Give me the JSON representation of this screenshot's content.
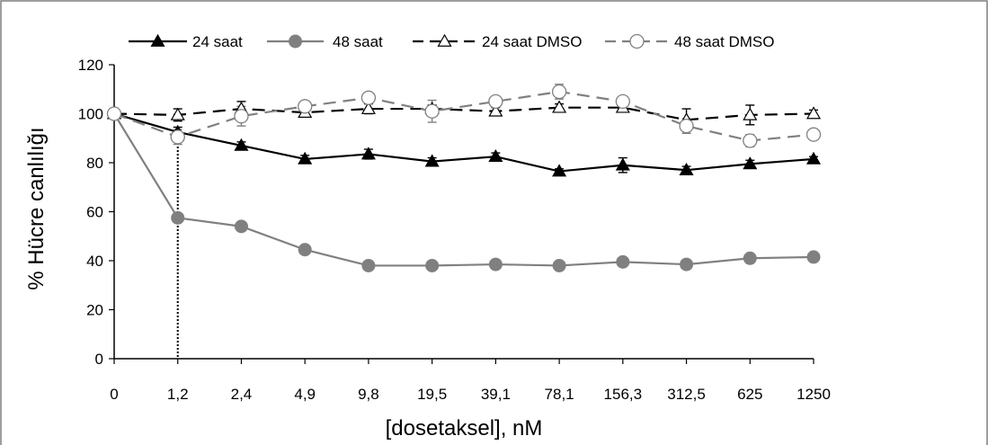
{
  "chart_data": {
    "type": "line",
    "xlabel": "[dosetaksel], nM",
    "ylabel": "% Hücre canlılığı",
    "categories": [
      "0",
      "1,2",
      "2,4",
      "4,9",
      "9,8",
      "19,5",
      "39,1",
      "78,1",
      "156,3",
      "312,5",
      "625",
      "1250"
    ],
    "ylim": [
      0,
      120
    ],
    "yticks": [
      0,
      20,
      40,
      60,
      80,
      100,
      120
    ],
    "grid": false,
    "legend_position": "top",
    "reference_line": {
      "category": "1,2",
      "style": "dotted"
    },
    "series": [
      {
        "name": "24 saat",
        "marker": "triangle-filled",
        "line_style": "solid",
        "color": "#000000",
        "values": [
          100,
          92.5,
          87,
          81.5,
          83.5,
          80.5,
          82.5,
          76.5,
          79,
          77,
          79.5,
          81.5
        ],
        "errors": [
          0,
          2,
          1.5,
          1.5,
          2,
          1.5,
          1.5,
          1,
          3,
          1.5,
          1.5,
          1
        ]
      },
      {
        "name": "48 saat",
        "marker": "circle-filled",
        "line_style": "solid",
        "color": "#808080",
        "values": [
          100,
          57.5,
          54,
          44.5,
          38,
          38,
          38.5,
          38,
          39.5,
          38.5,
          41,
          41.5
        ],
        "errors": [
          0,
          1,
          0.5,
          1,
          0.5,
          0.5,
          0.5,
          0.5,
          0.5,
          0.5,
          0.5,
          0.5
        ]
      },
      {
        "name": "24 saat DMSO",
        "marker": "triangle-open",
        "line_style": "dashed",
        "color": "#000000",
        "values": [
          100,
          99.5,
          102,
          100.5,
          102,
          102,
          101,
          102.5,
          102.5,
          97.5,
          99.5,
          100
        ],
        "errors": [
          0,
          2.5,
          3,
          1.5,
          2,
          1.5,
          1.5,
          1.5,
          1.5,
          4.5,
          4,
          1.5
        ]
      },
      {
        "name": "48 saat DMSO",
        "marker": "circle-open",
        "line_style": "dashed",
        "color": "#808080",
        "values": [
          100,
          90.5,
          99,
          103,
          106.5,
          101,
          105,
          109,
          105,
          95,
          89,
          91.5
        ],
        "errors": [
          0,
          3,
          4,
          1.5,
          1.5,
          4.5,
          1.5,
          3,
          1.5,
          3,
          2.5,
          1.5
        ]
      }
    ]
  }
}
